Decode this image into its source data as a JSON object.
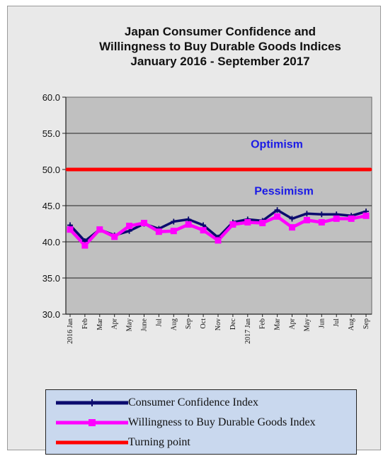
{
  "chart_data": {
    "type": "line",
    "title": [
      "Japan Consumer Confidence and",
      "Willingness to Buy Durable Goods Indices",
      "January 2016 - September  2017"
    ],
    "ylim": [
      30,
      60
    ],
    "yticks": [
      "60.0",
      "55.0",
      "50.0",
      "45.0",
      "40.0",
      "35.0",
      "30.0"
    ],
    "categories": [
      "2016 Jan",
      "Feb",
      "Mar",
      "Apr",
      "May",
      "June",
      "Jul",
      "Aug",
      "Sep",
      "Oct",
      "Nov",
      "Dec",
      "2017 Jan",
      "Feb",
      "Mar",
      "Apr",
      "May",
      "Jun",
      "Jul",
      "Aug",
      "Sep"
    ],
    "series": [
      {
        "name": "Consumer Confidence Index",
        "color": "#0b0b6e",
        "values": [
          42.3,
          40.1,
          41.7,
          40.9,
          41.5,
          42.5,
          41.8,
          42.8,
          43.1,
          42.3,
          40.6,
          42.7,
          43.1,
          42.9,
          44.4,
          43.2,
          43.9,
          43.8,
          43.8,
          43.6,
          44.2
        ]
      },
      {
        "name": "Willingness to Buy Durable Goods Index",
        "color": "#ff00ff",
        "values": [
          41.7,
          39.5,
          41.7,
          40.7,
          42.2,
          42.6,
          41.4,
          41.5,
          42.4,
          41.6,
          40.2,
          42.4,
          42.7,
          42.6,
          43.5,
          42.0,
          43.0,
          42.7,
          43.2,
          43.2,
          43.6
        ]
      },
      {
        "name": "Turning point",
        "color": "#ff0000",
        "values": [
          50,
          50,
          50,
          50,
          50,
          50,
          50,
          50,
          50,
          50,
          50,
          50,
          50,
          50,
          50,
          50,
          50,
          50,
          50,
          50,
          50
        ]
      }
    ],
    "annotations": {
      "optimism": "Optimism",
      "pessimism": "Pessimism"
    },
    "grid": "horizontal",
    "legend_position": "bottom"
  },
  "legend": {
    "items": [
      {
        "label": "Consumer Confidence Index",
        "color": "#0b0b6e"
      },
      {
        "label": "Willingness to Buy Durable Goods Index",
        "color": "#ff00ff"
      },
      {
        "label": "Turning point",
        "color": "#ff0000"
      }
    ]
  }
}
